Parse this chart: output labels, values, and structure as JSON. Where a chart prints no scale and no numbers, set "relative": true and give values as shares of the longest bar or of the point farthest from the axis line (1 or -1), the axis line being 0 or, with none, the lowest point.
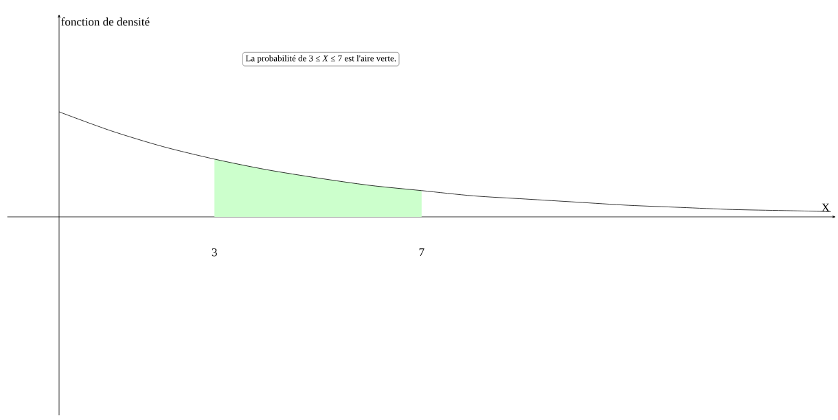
{
  "chart_data": {
    "type": "line",
    "relative": true,
    "xlim": [
      -1,
      15
    ],
    "xticks": [
      3,
      7
    ],
    "xlabel": "X",
    "annotations": [
      "fonction de densité",
      "La probabilité de 3 ≤ *X* ≤ 7 est l'aire verte."
    ],
    "series": [
      {
        "type": "area",
        "color": "#ccffcc",
        "x": [
          3,
          4,
          5,
          6,
          7
        ],
        "values": [
          0.55,
          0.45,
          0.37,
          0.3,
          0.25
        ]
      },
      {
        "color": "#000000",
        "x": [
          0,
          1,
          2,
          3,
          4,
          5,
          6,
          7,
          8,
          9,
          10,
          11,
          12,
          13,
          14,
          14.9
        ],
        "values": [
          1,
          0.82,
          0.67,
          0.55,
          0.45,
          0.37,
          0.3,
          0.25,
          0.2,
          0.17,
          0.14,
          0.11,
          0.09,
          0.07,
          0.06,
          0.05
        ]
      }
    ]
  }
}
